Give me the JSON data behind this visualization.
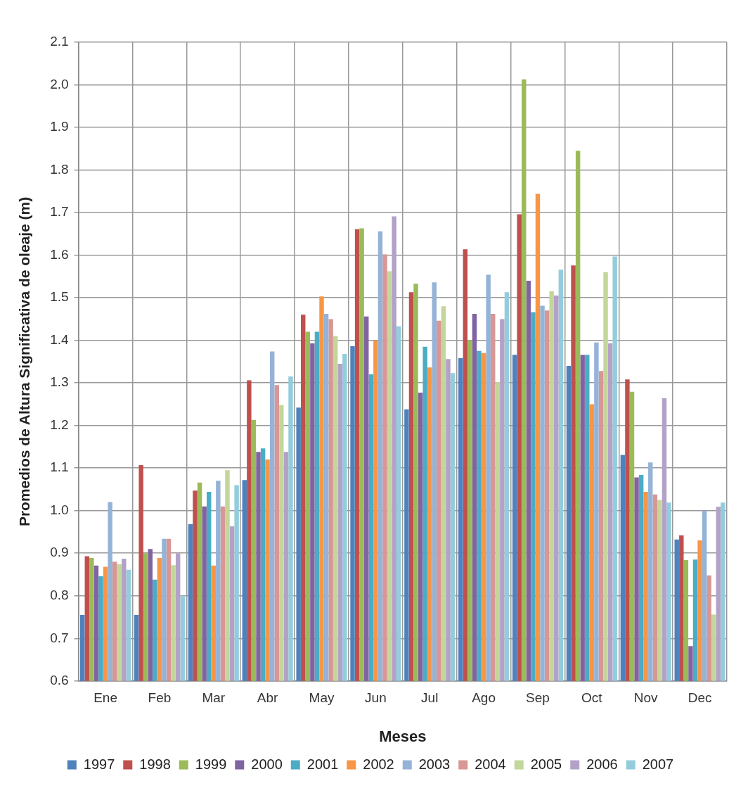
{
  "chart_data": {
    "type": "bar",
    "xlabel": "Meses",
    "ylabel": "Promedios de Altura Significativa de oleaje (m)",
    "categories": [
      "Ene",
      "Feb",
      "Mar",
      "Abr",
      "May",
      "Jun",
      "Jul",
      "Ago",
      "Sep",
      "Oct",
      "Nov",
      "Dec"
    ],
    "ylim": [
      0.6,
      2.1
    ],
    "yticks": [
      {
        "value": 0.6,
        "label": "0.6"
      },
      {
        "value": 0.7,
        "label": "0.7"
      },
      {
        "value": 0.8,
        "label": "0.8"
      },
      {
        "value": 0.9,
        "label": "0.9"
      },
      {
        "value": 1.0,
        "label": "1.0"
      },
      {
        "value": 1.1,
        "label": "1.1"
      },
      {
        "value": 1.2,
        "label": "1.2"
      },
      {
        "value": 1.3,
        "label": "1.3"
      },
      {
        "value": 1.4,
        "label": "1.4"
      },
      {
        "value": 1.5,
        "label": "1.5"
      },
      {
        "value": 1.6,
        "label": "1.6"
      },
      {
        "value": 1.7,
        "label": "1.7"
      },
      {
        "value": 1.8,
        "label": "1.8"
      },
      {
        "value": 1.9,
        "label": "1.9"
      },
      {
        "value": 2.0,
        "label": "2.0"
      },
      {
        "value": 2.1,
        "label": "2.1"
      }
    ],
    "grid": true,
    "legend": "bottom",
    "series": [
      {
        "name": "1997",
        "color": "#4f81bd",
        "values": [
          0.755,
          0.755,
          0.968,
          1.072,
          1.242,
          1.386,
          1.238,
          1.358,
          1.366,
          1.34,
          1.131,
          0.932
        ]
      },
      {
        "name": "1998",
        "color": "#c0504d",
        "values": [
          0.893,
          1.107,
          1.047,
          1.306,
          1.46,
          1.661,
          1.513,
          1.614,
          1.696,
          1.576,
          1.308,
          0.942
        ]
      },
      {
        "name": "1999",
        "color": "#9bbb59",
        "values": [
          0.889,
          0.9,
          1.066,
          1.213,
          1.42,
          1.663,
          1.533,
          1.4,
          2.013,
          1.845,
          1.279,
          0.884
        ]
      },
      {
        "name": "2000",
        "color": "#8064a2",
        "values": [
          0.871,
          0.91,
          1.01,
          1.138,
          1.393,
          1.456,
          1.277,
          1.462,
          1.54,
          1.366,
          1.078,
          0.682
        ]
      },
      {
        "name": "2001",
        "color": "#4bacc6",
        "values": [
          0.846,
          0.838,
          1.044,
          1.146,
          1.42,
          1.32,
          1.385,
          1.375,
          1.466,
          1.366,
          1.084,
          0.885
        ]
      },
      {
        "name": "2002",
        "color": "#f79646",
        "values": [
          0.868,
          0.889,
          0.871,
          1.12,
          1.503,
          1.4,
          1.336,
          1.37,
          1.744,
          1.25,
          1.044,
          0.93
        ]
      },
      {
        "name": "2003",
        "color": "#95b3d7",
        "values": [
          1.02,
          0.934,
          1.07,
          1.374,
          1.462,
          1.656,
          1.536,
          1.554,
          1.481,
          1.395,
          1.113,
          1.0
        ]
      },
      {
        "name": "2004",
        "color": "#d99694",
        "values": [
          0.88,
          0.934,
          1.01,
          1.295,
          1.45,
          1.602,
          1.446,
          1.462,
          1.47,
          1.328,
          1.038,
          0.848
        ]
      },
      {
        "name": "2005",
        "color": "#c3d69b",
        "values": [
          0.874,
          0.872,
          1.095,
          1.248,
          1.41,
          1.562,
          1.48,
          1.302,
          1.515,
          1.56,
          1.025,
          0.756
        ]
      },
      {
        "name": "2006",
        "color": "#b3a2c7",
        "values": [
          0.887,
          0.9,
          0.963,
          1.138,
          1.345,
          1.691,
          1.356,
          1.45,
          1.505,
          1.393,
          1.264,
          1.009
        ]
      },
      {
        "name": "2007",
        "color": "#93cddd",
        "values": [
          0.861,
          0.8,
          1.06,
          1.315,
          1.368,
          1.433,
          1.323,
          1.513,
          1.566,
          1.597,
          1.019,
          1.019
        ]
      }
    ]
  }
}
